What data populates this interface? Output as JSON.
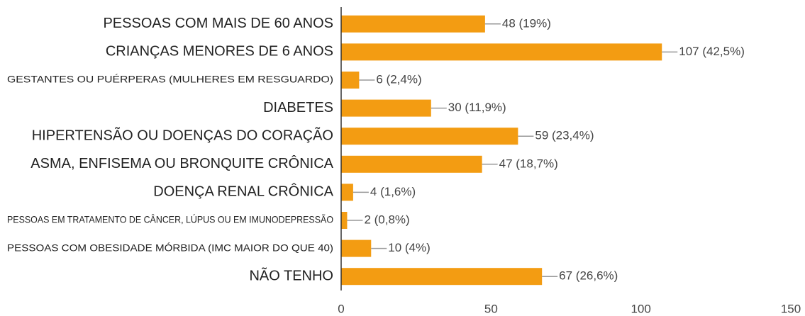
{
  "chart_data": {
    "type": "bar",
    "orientation": "horizontal",
    "categories": [
      "PESSOAS COM MAIS DE 60 ANOS",
      "CRIANÇAS MENORES DE 6 ANOS",
      "GESTANTES OU PUÉRPERAS (MULHERES EM RESGUARDO)",
      "DIABETES",
      "HIPERTENSÃO OU DOENÇAS DO CORAÇÃO",
      "ASMA, ENFISEMA OU BRONQUITE CRÔNICA",
      "DOENÇA RENAL CRÔNICA",
      "PESSOAS EM TRATAMENTO DE CÂNCER, LÚPUS OU EM IMUNODEPRESSÃO",
      "PESSOAS COM OBESIDADE MÓRBIDA (IMC MAIOR DO QUE 40)",
      "NÃO TENHO"
    ],
    "values": [
      48,
      107,
      6,
      30,
      59,
      47,
      4,
      2,
      10,
      67
    ],
    "value_labels": [
      "48 (19%)",
      "107 (42,5%)",
      "6 (2,4%)",
      "30 (11,9%)",
      "59 (23,4%)",
      "47 (18,7%)",
      "4 (1,6%)",
      "2 (0,8%)",
      "10 (4%)",
      "67 (26,6%)"
    ],
    "color": "#f39c12",
    "xlim": [
      0,
      150
    ],
    "xticks": [
      0,
      50,
      100,
      150
    ],
    "grid": false
  }
}
